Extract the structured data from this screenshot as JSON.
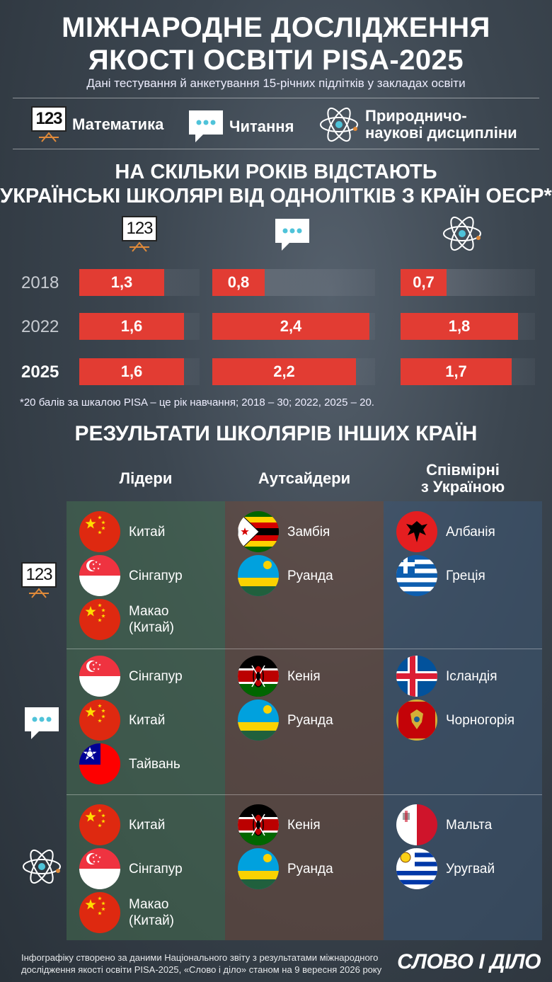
{
  "header": {
    "title_line1": "Міжнародне дослідження",
    "title_line2": "якості освіти PISA-2025",
    "subtitle": "Дані тестування й анкетування 15-річних підлітків у закладах освіти"
  },
  "legend": {
    "math": {
      "label": "Математика",
      "icon": "calculator-icon",
      "icon_text": "123"
    },
    "reading": {
      "label": "Читання",
      "icon": "speech-bubble-icon"
    },
    "science": {
      "label_line1": "Природничо-",
      "label_line2": "наукові дисципліни",
      "icon": "atom-icon"
    }
  },
  "chart_title": {
    "line1": "НА СКІЛЬКИ РОКІВ  ВІДСТАЮТЬ",
    "line2": "УКРАЇНСЬКІ ШКОЛЯРІ ВІД ОДНОЛІТКІВ З КРАЇН ОЕСР*"
  },
  "chart_data": {
    "type": "bar",
    "title": "НА СКІЛЬКИ РОКІВ ВІДСТАЮТЬ УКРАЇНСЬКІ ШКОЛЯРІ ВІД ОДНОЛІТКІВ З КРАЇН ОЕСР*",
    "categories": [
      "2018",
      "2022",
      "2025"
    ],
    "series": [
      {
        "name": "Математика",
        "values": [
          1.3,
          1.6,
          1.6
        ],
        "labels": [
          "1,3",
          "1,6",
          "1,6"
        ]
      },
      {
        "name": "Читання",
        "values": [
          0.8,
          2.4,
          2.2
        ],
        "labels": [
          "0,8",
          "2,4",
          "2,2"
        ]
      },
      {
        "name": "Природничо-наукові дисципліни",
        "values": [
          0.7,
          1.8,
          1.7
        ],
        "labels": [
          "0,7",
          "1,8",
          "1,7"
        ]
      }
    ],
    "orientation": "horizontal",
    "bar_color": "#e23c33",
    "xlim": [
      0,
      2.6
    ]
  },
  "footnote": "*20 балів за шкалою PISA – це рік навчання; 2018 – 30; 2022, 2025 – 20.",
  "results": {
    "title": "РЕЗУЛЬТАТИ ШКОЛЯРІВ ІНШИХ КРАЇН",
    "columns": [
      {
        "label": "Лідери",
        "color": "#4caf50"
      },
      {
        "label": "Аутсайдери",
        "color": "#c4531f"
      },
      {
        "label_line1": "Співмірні",
        "label_line2": "з Україною",
        "color": "#1e7ad4"
      }
    ],
    "groups": [
      {
        "subject_icon": "calculator-icon",
        "subject_icon_text": "123",
        "leaders": [
          {
            "name": "Китай",
            "flag": "china"
          },
          {
            "name": "Сінгапур",
            "flag": "singapore"
          },
          {
            "name_line1": "Макао",
            "name_line2": "(Китай)",
            "flag": "china"
          }
        ],
        "outsiders": [
          {
            "name": "Замбія",
            "flag": "zimbabwe"
          },
          {
            "name": "Руанда",
            "flag": "rwanda"
          }
        ],
        "comparable": [
          {
            "name": "Албанія",
            "flag": "albania"
          },
          {
            "name": "Греція",
            "flag": "greece"
          }
        ]
      },
      {
        "subject_icon": "speech-bubble-icon",
        "leaders": [
          {
            "name": "Сінгапур",
            "flag": "singapore"
          },
          {
            "name": "Китай",
            "flag": "china"
          },
          {
            "name": "Тайвань",
            "flag": "taiwan"
          }
        ],
        "outsiders": [
          {
            "name": "Кенія",
            "flag": "kenya"
          },
          {
            "name": "Руанда",
            "flag": "rwanda"
          }
        ],
        "comparable": [
          {
            "name": "Ісландія",
            "flag": "iceland"
          },
          {
            "name": "Чорногорія",
            "flag": "montenegro"
          }
        ]
      },
      {
        "subject_icon": "atom-icon",
        "leaders": [
          {
            "name": "Китай",
            "flag": "china"
          },
          {
            "name": "Сінгапур",
            "flag": "singapore"
          },
          {
            "name_line1": "Макао",
            "name_line2": "(Китай)",
            "flag": "china"
          }
        ],
        "outsiders": [
          {
            "name": "Кенія",
            "flag": "kenya"
          },
          {
            "name": "Руанда",
            "flag": "rwanda"
          }
        ],
        "comparable": [
          {
            "name": "Мальта",
            "flag": "malta"
          },
          {
            "name": "Уругвай",
            "flag": "uruguay"
          }
        ]
      }
    ]
  },
  "footer": {
    "line1": "Інфографіку створено за даними Національного звіту з результатами міжнародного",
    "line2": "дослідження якості освіти PISA-2025, «Слово і діло» станом на 9 вересня 2026 року",
    "logo": "СЛОВО І ДІЛО"
  }
}
